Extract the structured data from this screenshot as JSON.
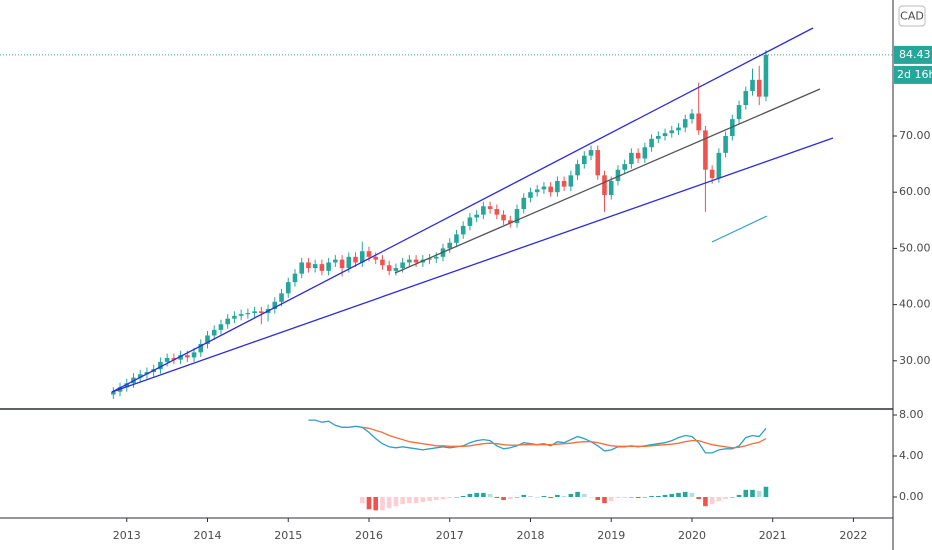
{
  "chart_data": [
    {
      "type": "candlestick",
      "currency": "CAD",
      "countdown": "2d 16h",
      "up_color": "#26a69a",
      "down_color": "#ef5350",
      "xlim": [
        2011.43,
        2022.49
      ],
      "xticks": [
        2013,
        2014,
        2015,
        2016,
        2017,
        2018,
        2019,
        2020,
        2021,
        2022
      ],
      "ylim": [
        21.6,
        94.2
      ],
      "yticks": [
        {
          "value": 30,
          "label": "30.00"
        },
        {
          "value": 40,
          "label": "40.00"
        },
        {
          "value": 50,
          "label": "50.00"
        },
        {
          "value": 60,
          "label": "60.00"
        },
        {
          "value": 70,
          "label": "70.00"
        }
      ],
      "last_price_label": "84.43",
      "x": [
        "2012-11",
        "2012-12",
        "2013-01",
        "2013-02",
        "2013-03",
        "2013-04",
        "2013-05",
        "2013-06",
        "2013-07",
        "2013-08",
        "2013-09",
        "2013-10",
        "2013-11",
        "2013-12",
        "2014-01",
        "2014-02",
        "2014-03",
        "2014-04",
        "2014-05",
        "2014-06",
        "2014-07",
        "2014-08",
        "2014-09",
        "2014-10",
        "2014-11",
        "2014-12",
        "2015-01",
        "2015-02",
        "2015-03",
        "2015-04",
        "2015-05",
        "2015-06",
        "2015-07",
        "2015-08",
        "2015-09",
        "2015-10",
        "2015-11",
        "2015-12",
        "2016-01",
        "2016-02",
        "2016-03",
        "2016-04",
        "2016-05",
        "2016-06",
        "2016-07",
        "2016-08",
        "2016-09",
        "2016-10",
        "2016-11",
        "2016-12",
        "2017-01",
        "2017-02",
        "2017-03",
        "2017-04",
        "2017-05",
        "2017-06",
        "2017-07",
        "2017-08",
        "2017-09",
        "2017-10",
        "2017-11",
        "2017-12",
        "2018-01",
        "2018-02",
        "2018-03",
        "2018-04",
        "2018-05",
        "2018-06",
        "2018-07",
        "2018-08",
        "2018-09",
        "2018-10",
        "2018-11",
        "2018-12",
        "2019-01",
        "2019-02",
        "2019-03",
        "2019-04",
        "2019-05",
        "2019-06",
        "2019-07",
        "2019-08",
        "2019-09",
        "2019-10",
        "2019-11",
        "2019-12",
        "2020-01",
        "2020-02",
        "2020-03",
        "2020-04",
        "2020-05",
        "2020-06",
        "2020-07",
        "2020-08",
        "2020-09",
        "2020-10",
        "2020-11",
        "2020-12"
      ],
      "open": [
        24.0,
        24.5,
        25.3,
        26.0,
        27.0,
        27.6,
        28.0,
        28.5,
        29.8,
        30.5,
        30.2,
        31.0,
        30.6,
        31.5,
        33.0,
        34.5,
        35.5,
        36.5,
        37.5,
        38.0,
        38.3,
        38.5,
        38.8,
        38.5,
        39.2,
        40.5,
        42.0,
        44.0,
        45.5,
        47.5,
        46.5,
        47.2,
        46.0,
        47.5,
        48.0,
        46.5,
        48.5,
        47.5,
        49.5,
        48.5,
        48.0,
        47.0,
        46.0,
        46.5,
        47.5,
        48.0,
        47.5,
        48.0,
        48.2,
        48.5,
        50.0,
        51.0,
        52.5,
        54.0,
        55.5,
        56.0,
        57.5,
        57.0,
        56.0,
        55.0,
        54.5,
        57.0,
        59.0,
        60.0,
        60.5,
        61.0,
        60.0,
        62.0,
        61.0,
        63.0,
        65.0,
        66.5,
        67.5,
        63.0,
        59.5,
        62.0,
        64.0,
        65.0,
        67.0,
        66.0,
        68.0,
        69.5,
        70.0,
        70.5,
        71.0,
        71.5,
        73.0,
        74.0,
        71.0,
        64.0,
        62.5,
        67.0,
        70.0,
        73.0,
        75.5,
        78.0,
        80.0,
        77.0
      ],
      "high": [
        25.3,
        26.1,
        26.8,
        27.8,
        28.4,
        28.8,
        29.3,
        30.6,
        31.3,
        31.3,
        31.8,
        31.8,
        32.3,
        33.8,
        35.3,
        36.3,
        37.3,
        38.3,
        38.8,
        39.1,
        39.3,
        39.6,
        39.6,
        40.0,
        41.3,
        42.8,
        44.8,
        46.3,
        48.3,
        48.3,
        48.0,
        48.0,
        48.3,
        48.8,
        48.8,
        49.3,
        49.3,
        51.2,
        50.3,
        49.3,
        48.8,
        47.8,
        47.3,
        48.3,
        48.8,
        48.8,
        48.8,
        49.0,
        49.3,
        50.8,
        51.8,
        53.3,
        54.8,
        56.3,
        56.8,
        58.3,
        58.3,
        57.8,
        56.8,
        55.8,
        57.8,
        59.8,
        60.8,
        61.3,
        61.8,
        61.8,
        62.8,
        62.8,
        63.8,
        65.8,
        67.3,
        68.3,
        68.3,
        63.8,
        62.8,
        64.8,
        65.8,
        67.8,
        67.8,
        68.8,
        70.3,
        70.8,
        71.3,
        71.8,
        72.3,
        73.8,
        74.8,
        79.5,
        71.8,
        64.8,
        67.8,
        70.8,
        73.8,
        76.3,
        78.8,
        82.0,
        82.5,
        85.3
      ],
      "low": [
        23.2,
        23.7,
        24.5,
        25.2,
        26.2,
        26.8,
        27.2,
        27.7,
        29.0,
        29.4,
        29.4,
        29.8,
        29.8,
        30.7,
        32.2,
        33.7,
        34.7,
        35.7,
        36.7,
        37.2,
        37.5,
        37.7,
        36.5,
        37.0,
        38.4,
        39.7,
        41.2,
        43.2,
        44.7,
        45.7,
        45.7,
        45.2,
        45.2,
        46.7,
        45.0,
        45.7,
        46.7,
        46.7,
        47.7,
        47.2,
        46.2,
        45.2,
        45.2,
        45.7,
        46.7,
        46.7,
        46.7,
        47.2,
        47.4,
        47.7,
        49.2,
        50.2,
        51.7,
        53.2,
        54.7,
        55.2,
        56.2,
        55.2,
        54.2,
        53.7,
        53.7,
        56.2,
        58.2,
        59.2,
        59.7,
        59.2,
        59.2,
        60.2,
        60.2,
        62.2,
        64.2,
        65.7,
        62.2,
        56.5,
        58.7,
        61.2,
        63.2,
        64.2,
        65.2,
        65.2,
        67.2,
        68.7,
        69.2,
        69.7,
        70.2,
        70.7,
        72.2,
        70.2,
        56.5,
        61.5,
        61.7,
        66.2,
        69.2,
        72.2,
        74.7,
        77.2,
        75.5,
        76.2
      ],
      "close": [
        24.5,
        25.3,
        26.0,
        27.0,
        27.6,
        28.0,
        28.5,
        29.8,
        30.5,
        30.2,
        31.0,
        30.6,
        31.5,
        33.0,
        34.5,
        35.5,
        36.5,
        37.5,
        38.0,
        38.3,
        38.5,
        38.8,
        38.5,
        39.2,
        40.5,
        42.0,
        44.0,
        45.5,
        47.5,
        46.5,
        47.2,
        46.0,
        47.5,
        48.0,
        46.5,
        48.5,
        47.5,
        49.5,
        48.5,
        48.0,
        47.0,
        46.0,
        46.5,
        47.5,
        48.0,
        47.5,
        48.0,
        48.2,
        48.5,
        50.0,
        51.0,
        52.5,
        54.0,
        55.5,
        56.0,
        57.5,
        57.0,
        56.0,
        55.0,
        54.5,
        57.0,
        59.0,
        60.0,
        60.5,
        61.0,
        60.0,
        62.0,
        61.0,
        63.0,
        65.0,
        66.5,
        67.5,
        63.0,
        59.5,
        62.0,
        64.0,
        65.0,
        67.0,
        66.0,
        68.0,
        69.5,
        70.0,
        70.5,
        71.0,
        71.5,
        73.0,
        74.0,
        71.0,
        64.0,
        62.5,
        67.0,
        70.0,
        73.0,
        75.5,
        78.0,
        80.0,
        77.0,
        84.43
      ]
    },
    {
      "type": "macd",
      "xlim": [
        2011.43,
        2022.49
      ],
      "ylim": [
        -2.05,
        8.49
      ],
      "yticks": [
        {
          "value": 0,
          "label": "0.00"
        },
        {
          "value": 4,
          "label": "4.00"
        },
        {
          "value": 8,
          "label": "8.00"
        }
      ],
      "histogram_colors": {
        "up_rising": "#26a69a",
        "up_falling": "#b2dfdb",
        "down_falling": "#ef5350",
        "down_rising": "#ffcdd2"
      },
      "x": [
        "2015-04",
        "2015-05",
        "2015-06",
        "2015-07",
        "2015-08",
        "2015-09",
        "2015-10",
        "2015-11",
        "2015-12",
        "2016-01",
        "2016-02",
        "2016-03",
        "2016-04",
        "2016-05",
        "2016-06",
        "2016-07",
        "2016-08",
        "2016-09",
        "2016-10",
        "2016-11",
        "2016-12",
        "2017-01",
        "2017-02",
        "2017-03",
        "2017-04",
        "2017-05",
        "2017-06",
        "2017-07",
        "2017-08",
        "2017-09",
        "2017-10",
        "2017-11",
        "2017-12",
        "2018-01",
        "2018-02",
        "2018-03",
        "2018-04",
        "2018-05",
        "2018-06",
        "2018-07",
        "2018-08",
        "2018-09",
        "2018-10",
        "2018-11",
        "2018-12",
        "2019-01",
        "2019-02",
        "2019-03",
        "2019-04",
        "2019-05",
        "2019-06",
        "2019-07",
        "2019-08",
        "2019-09",
        "2019-10",
        "2019-11",
        "2019-12",
        "2020-01",
        "2020-02",
        "2020-03",
        "2020-04",
        "2020-05",
        "2020-06",
        "2020-07",
        "2020-08",
        "2020-09",
        "2020-10",
        "2020-11",
        "2020-12"
      ],
      "series": [
        {
          "color": "#2ca0c9",
          "values": [
            7.5,
            7.5,
            7.3,
            7.4,
            7.0,
            6.8,
            6.8,
            6.9,
            6.8,
            6.3,
            5.7,
            5.2,
            4.9,
            4.8,
            4.9,
            4.8,
            4.7,
            4.6,
            4.7,
            4.8,
            4.9,
            4.8,
            4.9,
            5.0,
            5.3,
            5.5,
            5.6,
            5.5,
            5.0,
            4.7,
            4.8,
            5.0,
            5.3,
            5.2,
            5.1,
            5.2,
            5.0,
            5.4,
            5.3,
            5.6,
            5.9,
            5.7,
            5.4,
            5.0,
            4.5,
            4.6,
            4.9,
            4.9,
            5.0,
            4.9,
            5.0,
            5.1,
            5.2,
            5.3,
            5.5,
            5.8,
            6.0,
            5.9,
            5.3,
            4.3,
            4.3,
            4.6,
            4.7,
            4.7,
            5.0,
            5.8,
            6.0,
            5.9,
            6.7
          ]
        },
        {
          "color": "#f2703b",
          "values": [
            null,
            null,
            null,
            null,
            null,
            null,
            null,
            null,
            6.8,
            6.7,
            6.5,
            6.3,
            6.0,
            5.8,
            5.6,
            5.4,
            5.3,
            5.2,
            5.1,
            5.0,
            5.0,
            4.95,
            4.95,
            4.95,
            5.0,
            5.1,
            5.2,
            5.25,
            5.2,
            5.1,
            5.05,
            5.05,
            5.1,
            5.1,
            5.1,
            5.1,
            5.1,
            5.15,
            5.2,
            5.25,
            5.35,
            5.4,
            5.4,
            5.3,
            5.15,
            5.0,
            4.95,
            4.95,
            4.95,
            4.95,
            4.95,
            5.0,
            5.05,
            5.1,
            5.15,
            5.25,
            5.4,
            5.5,
            5.5,
            5.3,
            5.1,
            5.0,
            4.9,
            4.8,
            4.85,
            5.0,
            5.2,
            5.35,
            5.7
          ]
        }
      ],
      "histogram": [
        null,
        null,
        null,
        null,
        null,
        null,
        null,
        null,
        -0.6,
        -1.2,
        -1.3,
        -1.3,
        -1.1,
        -0.9,
        -0.7,
        -0.6,
        -0.6,
        -0.5,
        -0.4,
        -0.3,
        -0.2,
        -0.1,
        0.0,
        0.1,
        0.3,
        0.4,
        0.4,
        0.3,
        -0.1,
        -0.3,
        -0.2,
        0.0,
        0.2,
        0.1,
        0.0,
        0.1,
        -0.1,
        0.2,
        0.1,
        0.3,
        0.5,
        0.3,
        0.0,
        -0.3,
        -0.6,
        -0.4,
        -0.1,
        -0.1,
        0.0,
        -0.1,
        0.0,
        0.1,
        0.1,
        0.2,
        0.3,
        0.4,
        0.5,
        0.4,
        -0.2,
        -0.9,
        -0.7,
        -0.4,
        -0.2,
        0.0,
        0.2,
        0.7,
        0.7,
        0.6,
        1.0
      ]
    }
  ]
}
